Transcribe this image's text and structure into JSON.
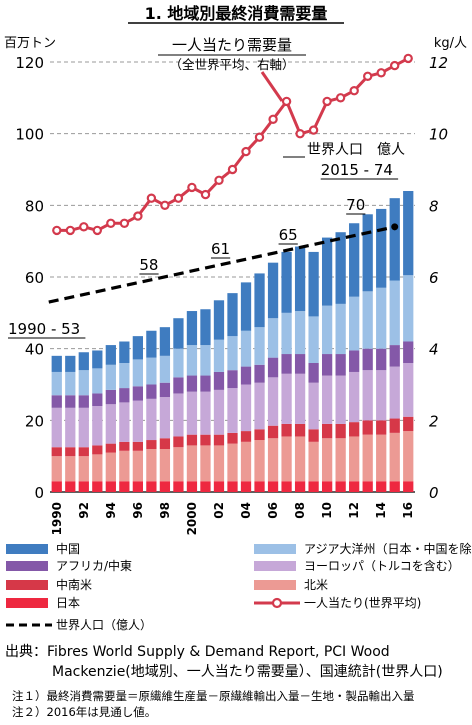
{
  "chart_data": {
    "type": "bar",
    "title": "1. 地域別最終消費需要量",
    "y_left_unit": "百万トン",
    "y_right_unit": "kg/人",
    "y_left_ticks": [
      0,
      20,
      40,
      60,
      80,
      100,
      120
    ],
    "y_right_ticks": [
      0,
      2,
      4,
      6,
      8,
      10,
      12
    ],
    "ylim_left": [
      0,
      120
    ],
    "ylim_right": [
      0,
      12
    ],
    "x_tick_labels": [
      "1990",
      "92",
      "94",
      "96",
      "98",
      "2000",
      "02",
      "04",
      "06",
      "08",
      "10",
      "12",
      "14",
      "16"
    ],
    "categories": [
      1990,
      1991,
      1992,
      1993,
      1994,
      1995,
      1996,
      1997,
      1998,
      1999,
      2000,
      2001,
      2002,
      2003,
      2004,
      2005,
      2006,
      2007,
      2008,
      2009,
      2010,
      2011,
      2012,
      2013,
      2014,
      2015,
      2016
    ],
    "stacked_series": [
      {
        "name": "日本",
        "color": "#ee2840",
        "values": [
          3,
          3,
          3,
          3,
          3,
          3,
          3,
          3,
          3,
          3,
          3,
          3,
          3,
          3,
          3,
          3,
          3,
          3,
          3,
          3,
          3,
          3,
          3,
          3,
          3,
          3,
          3
        ]
      },
      {
        "name": "北米",
        "color": "#ec9a94",
        "values": [
          7,
          7,
          7,
          7.5,
          8,
          8.5,
          8.5,
          9,
          9,
          9.5,
          10,
          10,
          10,
          10.5,
          11,
          11.5,
          12,
          12.5,
          12.5,
          11,
          12,
          12,
          12.5,
          13,
          13,
          13.5,
          14
        ]
      },
      {
        "name": "中南米",
        "color": "#d63848",
        "values": [
          2.5,
          2.5,
          2.5,
          2.5,
          2.5,
          2.5,
          2.5,
          2.5,
          3,
          3,
          3,
          3,
          3,
          3,
          3,
          3,
          3.5,
          3.5,
          3.5,
          3.5,
          4,
          4,
          4,
          4,
          4,
          4,
          4
        ]
      },
      {
        "name": "ヨーロッパ（トルコを含む）",
        "color": "#c6a8d8",
        "values": [
          11,
          11,
          11,
          11,
          11,
          11,
          11.5,
          11.5,
          11.5,
          12,
          12,
          12,
          12.5,
          12.5,
          13,
          13,
          13.5,
          14,
          14,
          13,
          13.5,
          13.5,
          14,
          14,
          14,
          14.5,
          15
        ]
      },
      {
        "name": "アフリカ/中東",
        "color": "#8458a8",
        "values": [
          3.5,
          3.5,
          3.5,
          3.5,
          4,
          4,
          4,
          4,
          4,
          4.5,
          4.5,
          4.5,
          5,
          5,
          5,
          5,
          5.5,
          5.5,
          5.5,
          5.5,
          6,
          6,
          6,
          6,
          6,
          6,
          6
        ]
      },
      {
        "name": "アジア大洋州（日本・中国を除く）",
        "color": "#9cc0e6",
        "values": [
          6.5,
          6.5,
          7,
          7,
          7,
          7,
          7.5,
          7.5,
          7.5,
          8,
          8.5,
          8.5,
          9,
          9.5,
          10,
          10.5,
          11,
          11.5,
          12,
          13,
          13.5,
          14,
          15,
          16,
          17,
          18,
          18.5
        ]
      },
      {
        "name": "中国",
        "color": "#3f7cc0",
        "values": [
          4.5,
          4.5,
          5,
          5,
          5.5,
          6,
          6.5,
          7.5,
          8,
          8.5,
          9.5,
          10,
          11,
          12,
          13.5,
          15,
          15.5,
          17,
          18,
          18,
          19,
          20,
          20.5,
          21.5,
          22,
          23,
          23.5
        ]
      }
    ],
    "line_series": {
      "name": "一人当たり(世界平均)",
      "color": "#d33a4d",
      "axis": "right",
      "values": [
        7.3,
        7.3,
        7.4,
        7.3,
        7.5,
        7.5,
        7.7,
        8.2,
        8.0,
        8.2,
        8.5,
        8.3,
        8.7,
        9.0,
        9.5,
        9.9,
        10.4,
        10.9,
        10.0,
        10.1,
        10.9,
        11.0,
        11.2,
        11.6,
        11.7,
        11.9,
        12.1
      ]
    },
    "population_series": {
      "name": "世界人口（億人）",
      "axis": "right",
      "x": [
        1990,
        2015
      ],
      "values": [
        5.3,
        7.4
      ],
      "labels": [
        {
          "x": 1990,
          "text": "1990 - 53"
        },
        {
          "x": 1997,
          "text": "58"
        },
        {
          "x": 2002,
          "text": "61"
        },
        {
          "x": 2007,
          "text": "65"
        },
        {
          "x": 2012,
          "text": "70"
        },
        {
          "x": 2015,
          "text": "2015 - 74"
        }
      ]
    },
    "annotations": {
      "per_capita_label": "一人当たり需要量",
      "per_capita_sub": "（全世界平均、右軸）",
      "population_label": "世界人口　億人"
    },
    "legend": [
      {
        "key": "china",
        "label": "中国",
        "kind": "box",
        "color": "#3f7cc0"
      },
      {
        "key": "asia",
        "label": "アジア大洋州（日本・中国を除く",
        "kind": "box",
        "color": "#9cc0e6"
      },
      {
        "key": "africa",
        "label": "アフリカ/中東",
        "kind": "box",
        "color": "#8458a8"
      },
      {
        "key": "europe",
        "label": "ヨーロッパ（トルコを含む）",
        "kind": "box",
        "color": "#c6a8d8"
      },
      {
        "key": "latam",
        "label": "中南米",
        "kind": "box",
        "color": "#d63848"
      },
      {
        "key": "na",
        "label": "北米",
        "kind": "box",
        "color": "#ec9a94"
      },
      {
        "key": "japan",
        "label": "日本",
        "kind": "box",
        "color": "#ee2840"
      },
      {
        "key": "percap",
        "label": "一人当たり(世界平均)",
        "kind": "marker-line",
        "color": "#d33a4d"
      },
      {
        "key": "pop",
        "label": "世界人口（億人）",
        "kind": "dash-line",
        "color": "#000000"
      }
    ]
  },
  "source": {
    "line1": "出典：Fibres World Supply & Demand Report, PCI Wood",
    "line2": "Mackenzie(地域別、一人当たり需要量）、国連統計(世界人口)"
  },
  "notes": [
    "注１）最終消費需要量＝原繊維生産量－原繊維輸出入量－生地・製品輸出入量",
    "注２）2016年は見通し値。"
  ]
}
